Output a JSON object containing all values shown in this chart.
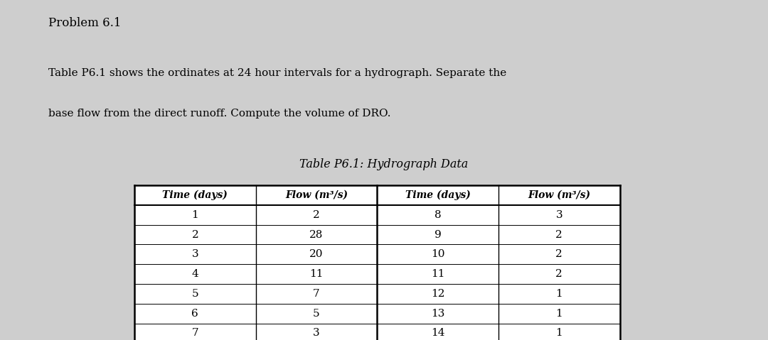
{
  "problem_title": "Problem 6.1",
  "description_line1": "Table P6.1 shows the ordinates at 24 hour intervals for a hydrograph. Separate the",
  "description_line2": "base flow from the direct runoff. Compute the volume of DRO.",
  "table_title": "Table P6.1: Hydrograph Data",
  "col_headers": [
    "Time (days)",
    "Flow (m³/s)",
    "Time (days)",
    "Flow (m³/s)"
  ],
  "left_time": [
    1,
    2,
    3,
    4,
    5,
    6,
    7
  ],
  "left_flow": [
    2,
    28,
    20,
    11,
    7,
    5,
    3
  ],
  "right_time": [
    8,
    9,
    10,
    11,
    12,
    13,
    14
  ],
  "right_flow": [
    3,
    2,
    2,
    2,
    1,
    1,
    1
  ],
  "bg_color": "#cecece",
  "text_color": "#000000",
  "font_family": "serif"
}
